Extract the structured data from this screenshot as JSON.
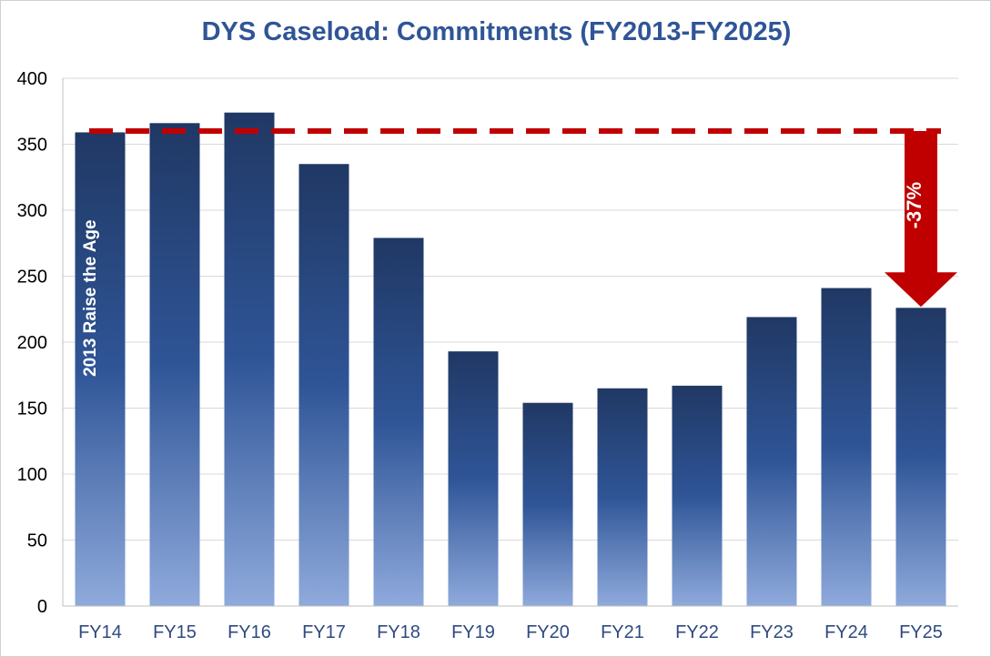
{
  "chart_data": {
    "type": "bar",
    "title": "DYS Caseload: Commitments (FY2013-FY2025)",
    "xlabel": "",
    "ylabel": "",
    "categories": [
      "FY14",
      "FY15",
      "FY16",
      "FY17",
      "FY18",
      "FY19",
      "FY20",
      "FY21",
      "FY22",
      "FY23",
      "FY24",
      "FY25"
    ],
    "values": [
      359,
      366,
      374,
      335,
      279,
      193,
      154,
      165,
      167,
      219,
      241,
      226
    ],
    "ylim": [
      0,
      400
    ],
    "yticks": [
      0,
      50,
      100,
      150,
      200,
      250,
      300,
      350,
      400
    ],
    "grid": true,
    "legend": "none",
    "reference_line": {
      "value": 360,
      "style": "dashed",
      "color": "#c00000"
    },
    "annotations": {
      "vertical_label": "2013 Raise the Age",
      "change_label": "-37%"
    },
    "colors": {
      "bar_top": "#203864",
      "bar_mid": "#2f5597",
      "bar_bottom": "#8faadc",
      "arrow": "#c00000",
      "title": "#2f5597",
      "axis_labels": "#2f4a80"
    }
  }
}
